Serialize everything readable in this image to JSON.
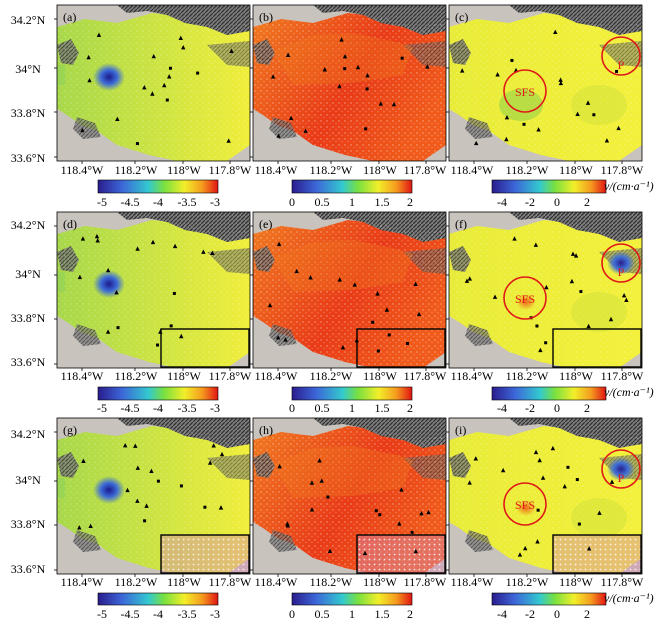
{
  "figure": {
    "y_tick_labels": [
      "34.2°N",
      "34°N",
      "33.8°N",
      "33.6°N"
    ],
    "x_tick_labels": [
      "118.4°W",
      "118.2°W",
      "118°W",
      "117.8°W"
    ],
    "colorbar_unit": "v/(cm·a⁻¹)",
    "panels": [
      {
        "label": "(a)"
      },
      {
        "label": "(b)"
      },
      {
        "label": "(c)",
        "annotations": [
          "SFS",
          "P"
        ]
      },
      {
        "label": "(d)"
      },
      {
        "label": "(e)"
      },
      {
        "label": "(f)",
        "annotations": [
          "SFS",
          "P"
        ]
      },
      {
        "label": "(g)"
      },
      {
        "label": "(h)"
      },
      {
        "label": "(i)",
        "annotations": [
          "SFS",
          "P"
        ]
      }
    ],
    "colorbars": [
      {
        "column": 1,
        "ticks": [
          "-5",
          "-4.5",
          "-4",
          "-3.5",
          "-3"
        ]
      },
      {
        "column": 2,
        "ticks": [
          "0",
          "0.5",
          "1",
          "1.5",
          "2"
        ]
      },
      {
        "column": 3,
        "ticks": [
          "-4",
          "-2",
          "0",
          "2"
        ]
      }
    ]
  }
}
